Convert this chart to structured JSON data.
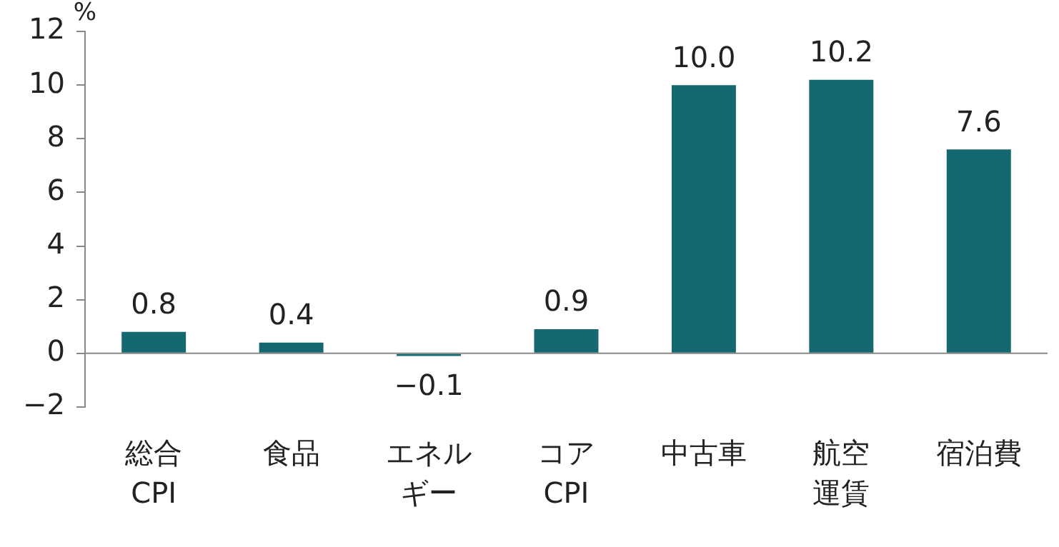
{
  "chart_data": {
    "type": "bar",
    "ylabel": "%",
    "categories": [
      "総合CPI",
      "食品",
      "エネルギー",
      "コアCPI",
      "中古車",
      "航空運賃",
      "宿泊費"
    ],
    "values": [
      0.8,
      0.4,
      -0.1,
      0.9,
      10.0,
      10.2,
      7.6
    ],
    "value_labels": [
      "0.8",
      "0.4",
      "−0.1",
      "0.9",
      "10.0",
      "10.2",
      "7.6"
    ],
    "color": "#156870",
    "ylim": [
      -2,
      12
    ],
    "yticks": [
      {
        "value": -2,
        "label": "−2"
      },
      0,
      2,
      4,
      6,
      8,
      10,
      12
    ],
    "ref_lines": [
      {
        "axis": "y",
        "value": 0,
        "color": "#888888"
      }
    ],
    "grid": false,
    "legend": false
  }
}
